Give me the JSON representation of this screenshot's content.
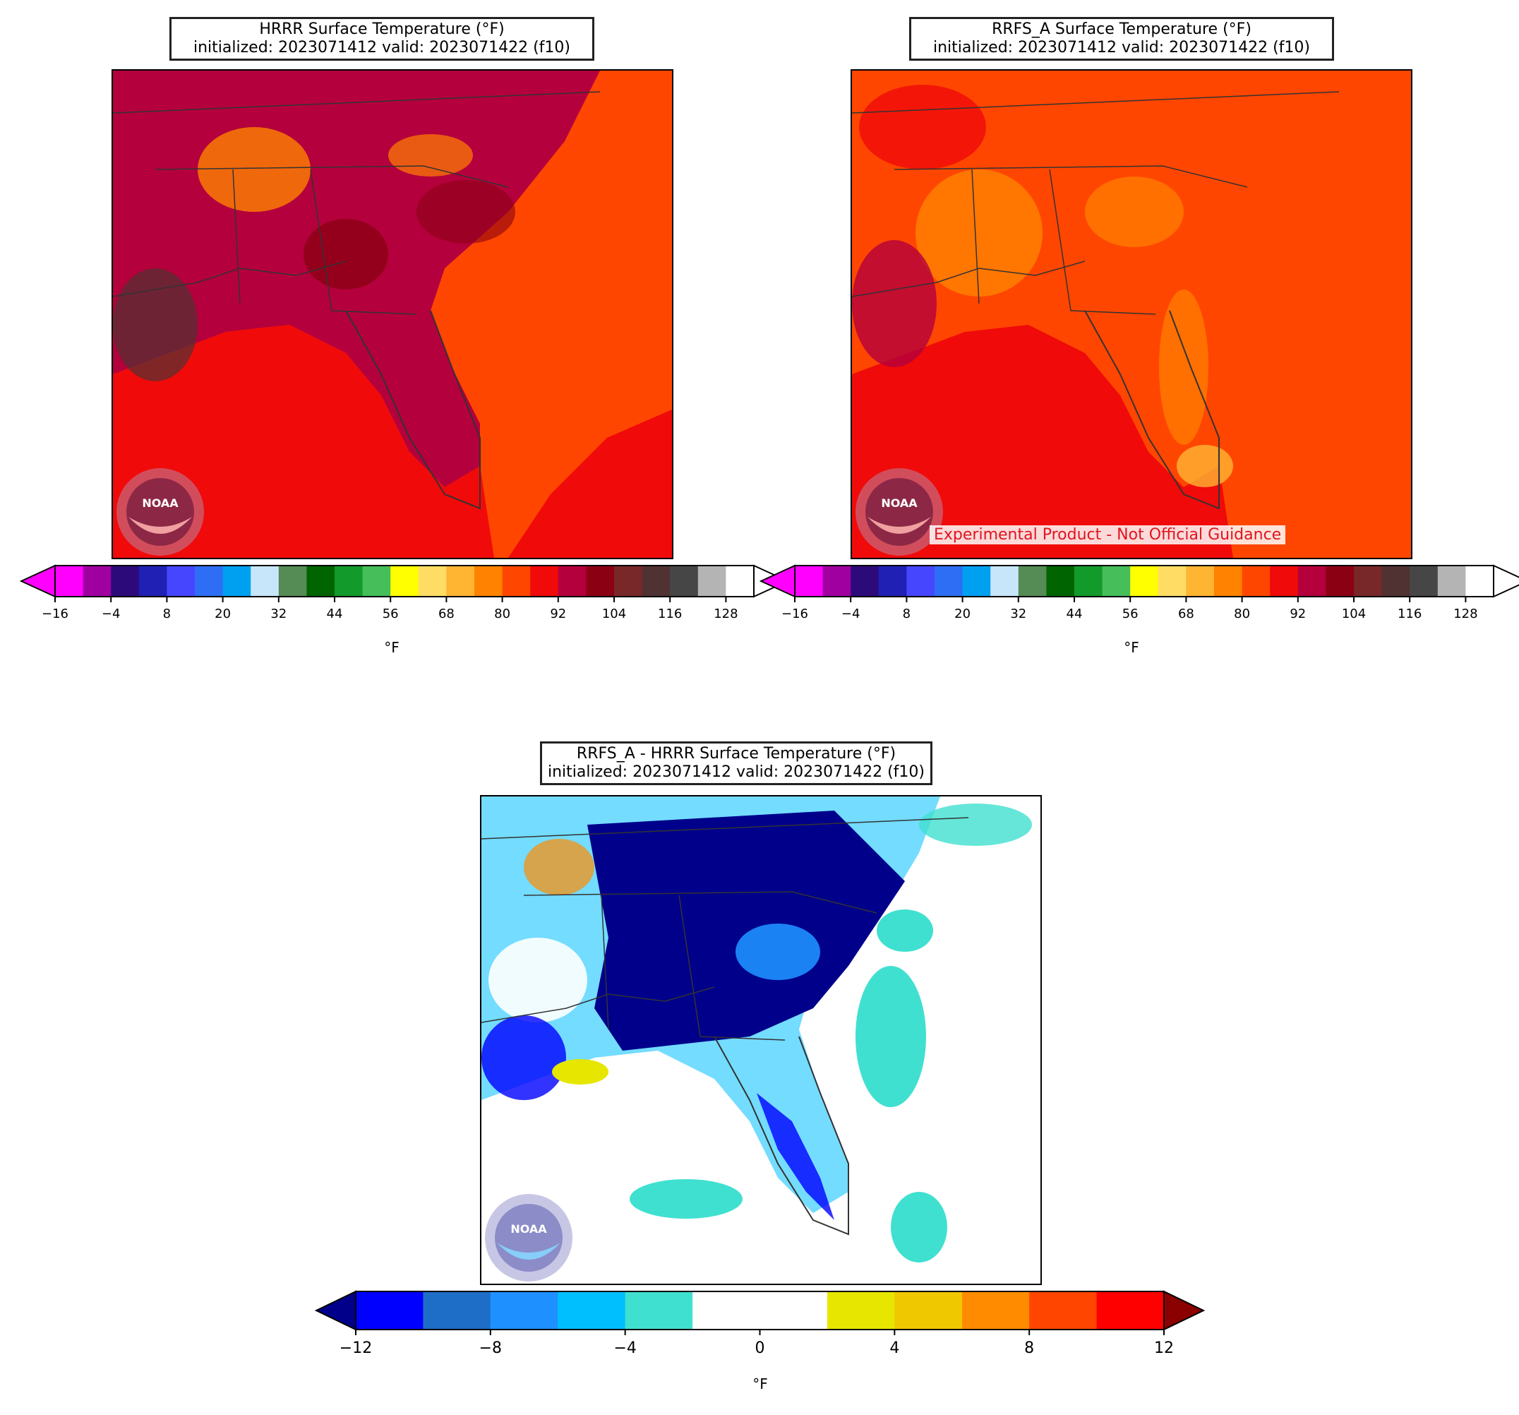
{
  "panels": {
    "hrrr": {
      "title_line1": "HRRR Surface Temperature (°F)",
      "title_line2": "initialized: 2023071412 valid: 2023071422 (f10)"
    },
    "rrfs": {
      "title_line1": "RRFS_A Surface Temperature (°F)",
      "title_line2": "initialized: 2023071412 valid: 2023071422 (f10)",
      "watermark": "Experimental Product - Not Official Guidance"
    },
    "diff": {
      "title_line1": "RRFS_A - HRRR Surface Temperature (°F)",
      "title_line2": "initialized: 2023071412 valid: 2023071422 (f10)"
    }
  },
  "logo_text": "NOAA",
  "temp_colorbar": {
    "unit": "°F",
    "ticks": [
      "−16",
      "−4",
      "8",
      "20",
      "32",
      "44",
      "56",
      "68",
      "80",
      "92",
      "104",
      "116",
      "128"
    ],
    "colors": [
      "#ff00ff",
      "#a000a0",
      "#2d0a7a",
      "#2020b4",
      "#4646ff",
      "#2e6ef5",
      "#00a0f0",
      "#c8e6fa",
      "#558b55",
      "#006400",
      "#129b2a",
      "#46be5a",
      "#ffff00",
      "#ffdc64",
      "#ffb432",
      "#ff8200",
      "#ff4600",
      "#f00a0a",
      "#b4003c",
      "#8c0014",
      "#782828",
      "#503232",
      "#464646",
      "#b4b4b4",
      "#ffffff"
    ]
  },
  "diff_colorbar": {
    "unit": "°F",
    "ticks": [
      "−12",
      "−8",
      "−4",
      "0",
      "4",
      "8",
      "12"
    ],
    "colors": [
      "#0000ff",
      "#1e6ec8",
      "#1e90ff",
      "#00bfff",
      "#40e0d0",
      "#ffffff",
      "#ffffff",
      "#e6e600",
      "#f0c800",
      "#ff8c00",
      "#ff4500",
      "#ff0000"
    ],
    "under_color": "#00008b",
    "over_color": "#8b0000"
  }
}
